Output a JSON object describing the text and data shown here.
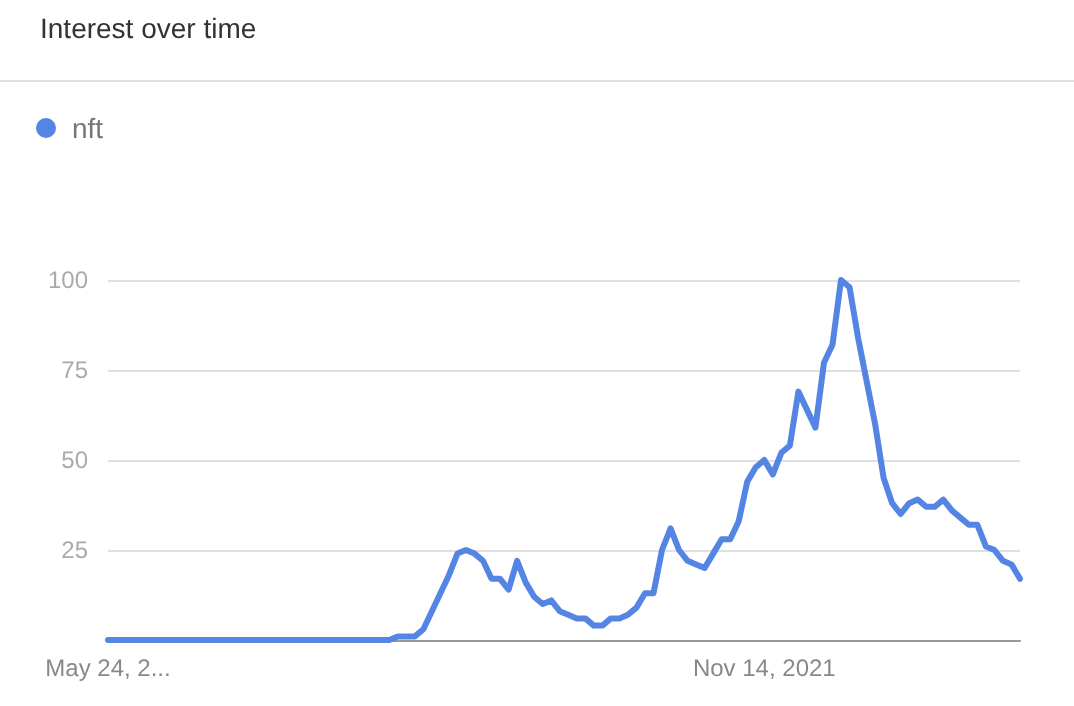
{
  "chart_data": {
    "type": "line",
    "title": "Interest over time",
    "categories": [
      "May 24, 2...",
      null,
      null,
      null,
      null,
      null,
      null,
      null,
      null,
      null,
      null,
      null,
      null,
      null,
      null,
      null,
      null,
      null,
      null,
      null,
      null,
      null,
      null,
      null,
      null,
      null,
      null,
      null,
      null,
      null,
      null,
      null,
      null,
      null,
      null,
      null,
      null,
      null,
      null,
      null,
      null,
      null,
      null,
      null,
      null,
      null,
      null,
      null,
      null,
      null,
      null,
      null,
      null,
      null,
      null,
      null,
      null,
      null,
      null,
      null,
      null,
      null,
      null,
      null,
      null,
      null,
      null,
      null,
      null,
      null,
      null,
      null,
      null,
      null,
      null,
      null,
      null,
      "Nov 14, 2021",
      null,
      null,
      null,
      null,
      null,
      null,
      null,
      null,
      null,
      null,
      null,
      null,
      null,
      null,
      null,
      null,
      null,
      null,
      null,
      null,
      null,
      null,
      null,
      null,
      null,
      null,
      null,
      null,
      null,
      null
    ],
    "series": [
      {
        "name": "nft",
        "color": "#5585e4",
        "values": [
          0,
          0,
          0,
          0,
          0,
          0,
          0,
          0,
          0,
          0,
          0,
          0,
          0,
          0,
          0,
          0,
          0,
          0,
          0,
          0,
          0,
          0,
          0,
          0,
          0,
          0,
          0,
          0,
          0,
          0,
          0,
          0,
          0,
          0,
          1,
          1,
          1,
          3,
          8,
          13,
          18,
          24,
          25,
          24,
          22,
          17,
          17,
          14,
          22,
          16,
          12,
          10,
          11,
          8,
          7,
          6,
          6,
          4,
          4,
          6,
          6,
          7,
          9,
          13,
          13,
          25,
          31,
          25,
          22,
          21,
          20,
          24,
          28,
          28,
          33,
          44,
          48,
          50,
          46,
          52,
          54,
          69,
          64,
          59,
          77,
          82,
          100,
          98,
          84,
          72,
          60,
          45,
          38,
          35,
          38,
          39,
          37,
          37,
          39,
          36,
          34,
          32,
          32,
          26,
          25,
          22,
          21,
          17
        ]
      }
    ],
    "ylim": [
      0,
      100
    ],
    "yticks": [
      25,
      50,
      75,
      100
    ],
    "grid": "y",
    "legend": "top left",
    "marker": "none",
    "line_style": "solid"
  }
}
